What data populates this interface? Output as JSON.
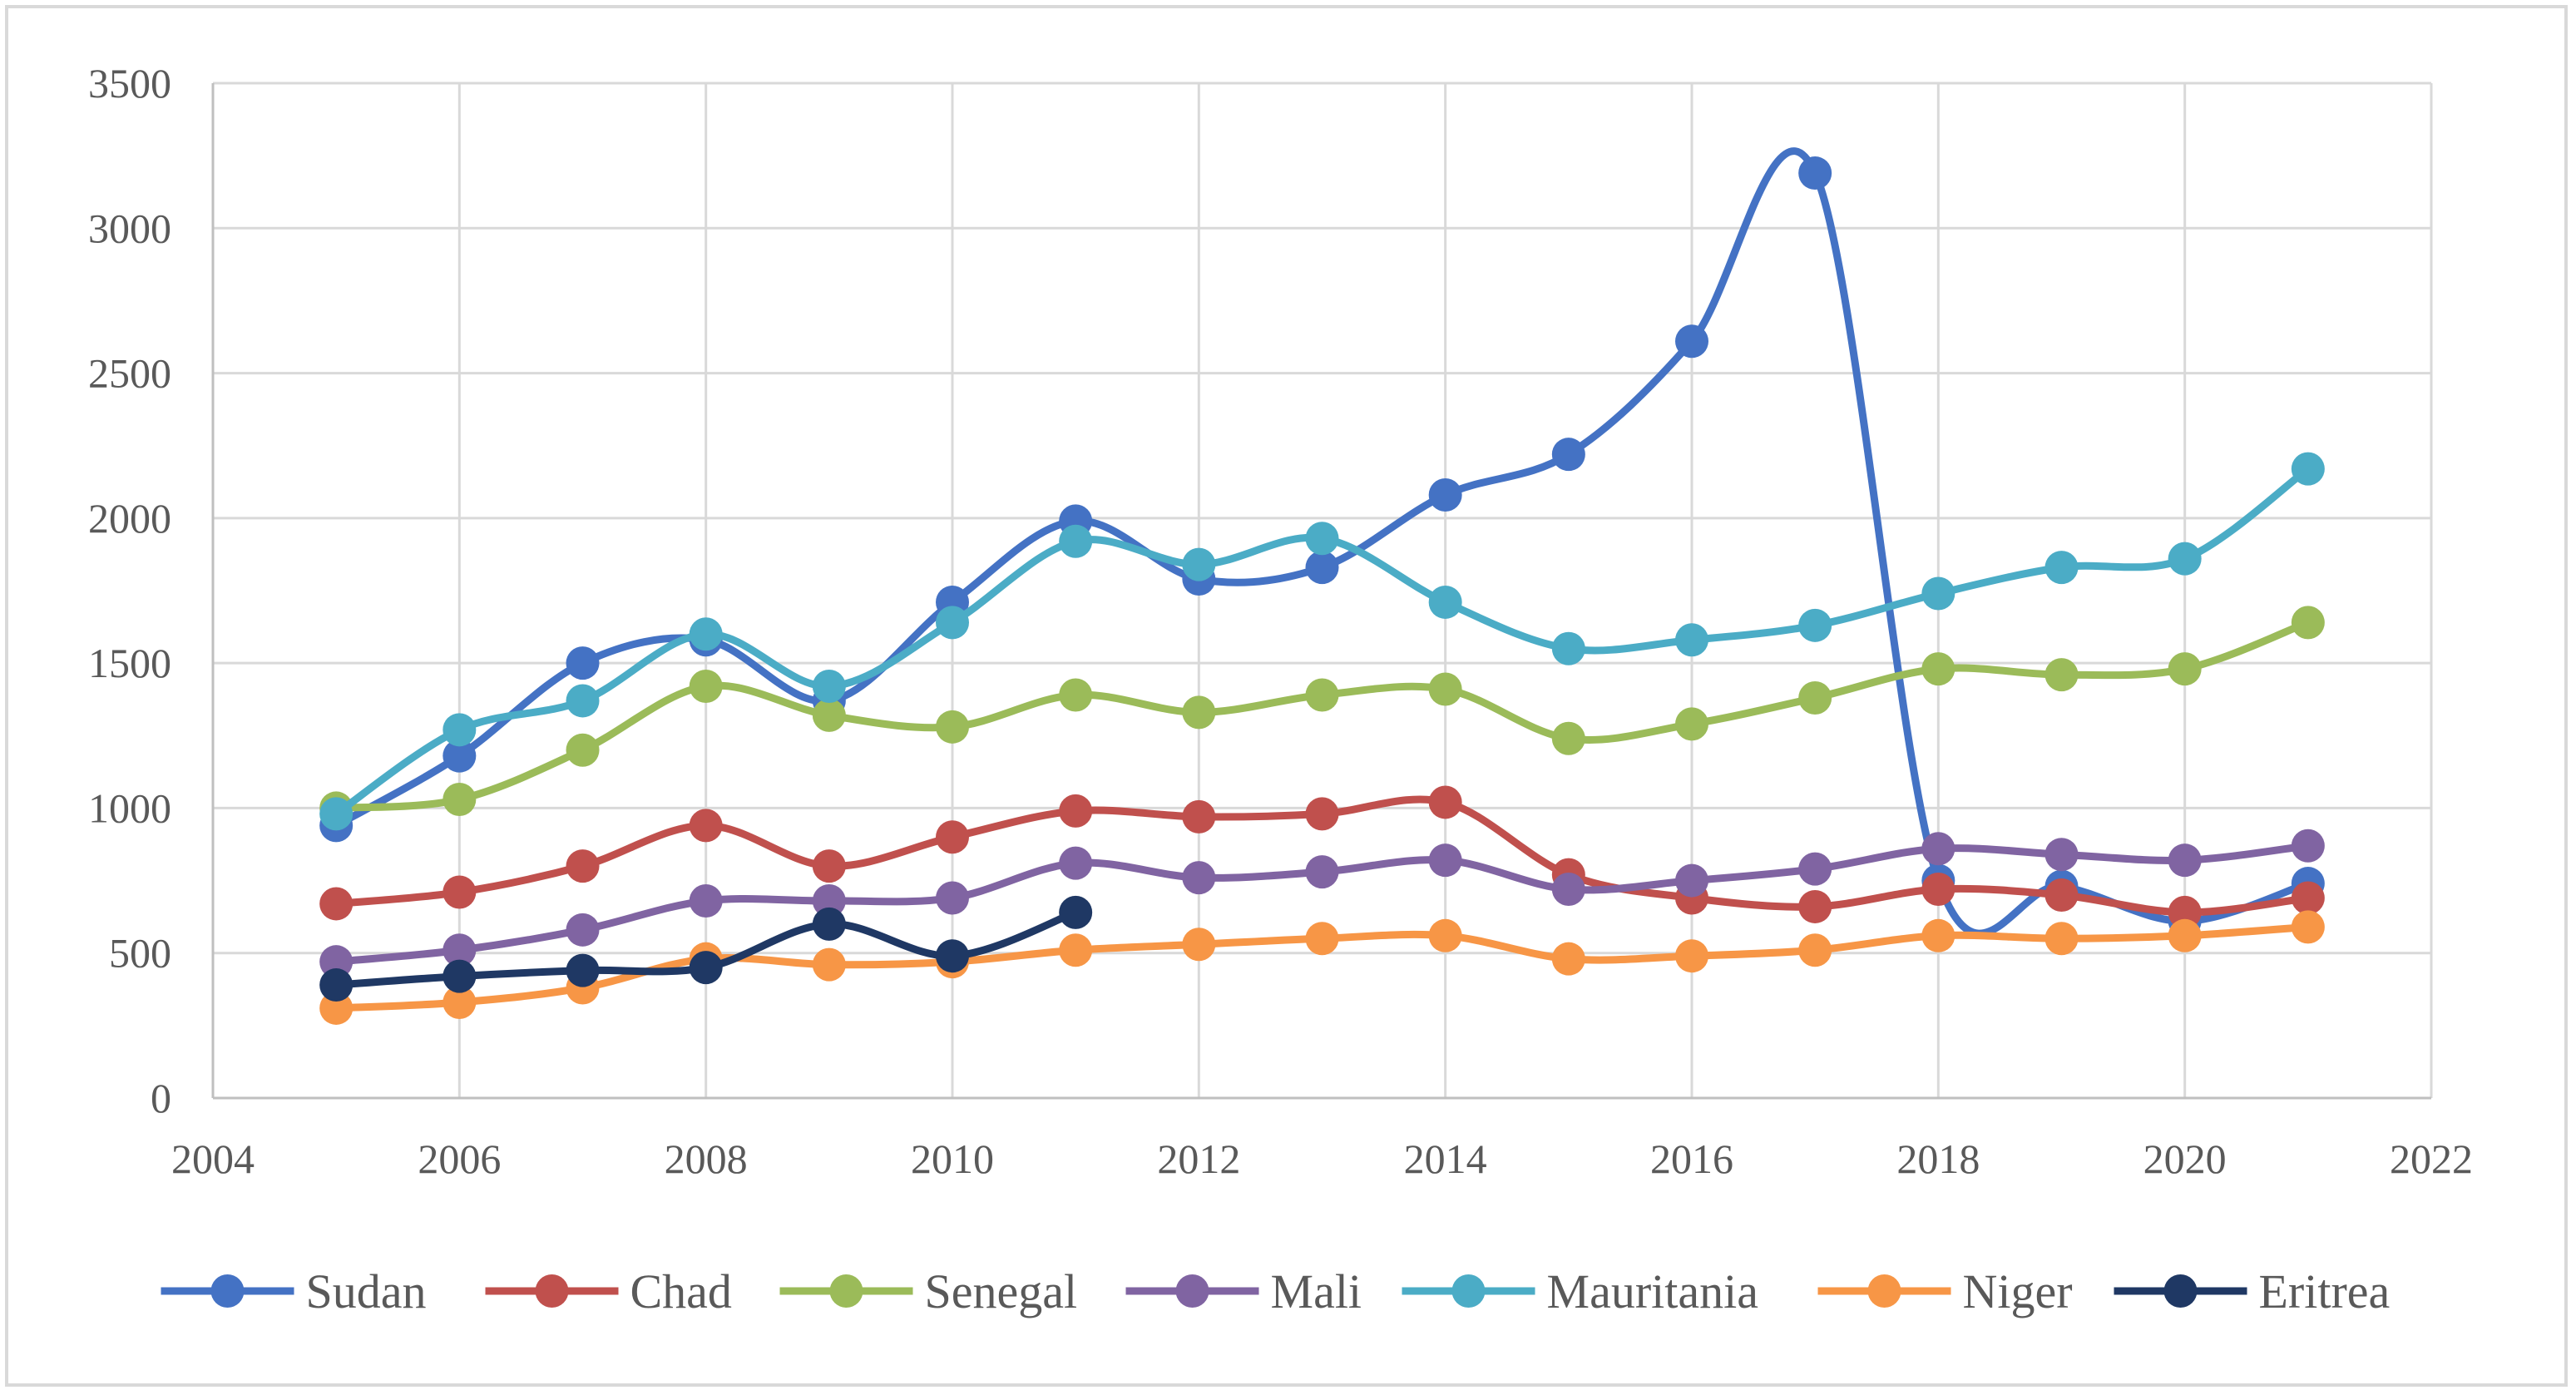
{
  "chart_data": {
    "type": "line",
    "title": "",
    "xlabel": "",
    "ylabel": "",
    "xlim": [
      2004,
      2022
    ],
    "ylim": [
      0,
      3500
    ],
    "x_ticks": [
      2004,
      2006,
      2008,
      2010,
      2012,
      2014,
      2016,
      2018,
      2020,
      2022
    ],
    "y_ticks": [
      0,
      500,
      1000,
      1500,
      2000,
      2500,
      3000,
      3500
    ],
    "grid": true,
    "legend_position": "bottom",
    "series": [
      {
        "name": "Sudan",
        "color": "#4472c4",
        "x": [
          2005,
          2006,
          2007,
          2008,
          2009,
          2010,
          2011,
          2012,
          2013,
          2014,
          2015,
          2016,
          2017,
          2018,
          2019,
          2020,
          2021
        ],
        "values": [
          940,
          1180,
          1500,
          1580,
          1370,
          1710,
          1990,
          1790,
          1830,
          2080,
          2220,
          2610,
          3190,
          750,
          730,
          610,
          740
        ]
      },
      {
        "name": "Chad",
        "color": "#c0504d",
        "x": [
          2005,
          2006,
          2007,
          2008,
          2009,
          2010,
          2011,
          2012,
          2013,
          2014,
          2015,
          2016,
          2017,
          2018,
          2019,
          2020,
          2021
        ],
        "values": [
          670,
          710,
          800,
          940,
          800,
          900,
          990,
          970,
          980,
          1020,
          770,
          690,
          660,
          720,
          700,
          640,
          690
        ]
      },
      {
        "name": "Senegal",
        "color": "#9bbb59",
        "x": [
          2005,
          2006,
          2007,
          2008,
          2009,
          2010,
          2011,
          2012,
          2013,
          2014,
          2015,
          2016,
          2017,
          2018,
          2019,
          2020,
          2021
        ],
        "values": [
          1000,
          1030,
          1200,
          1420,
          1320,
          1280,
          1390,
          1330,
          1390,
          1410,
          1240,
          1290,
          1380,
          1480,
          1460,
          1480,
          1640
        ]
      },
      {
        "name": "Mali",
        "color": "#8064a2",
        "x": [
          2005,
          2006,
          2007,
          2008,
          2009,
          2010,
          2011,
          2012,
          2013,
          2014,
          2015,
          2016,
          2017,
          2018,
          2019,
          2020,
          2021
        ],
        "values": [
          470,
          510,
          580,
          680,
          680,
          690,
          810,
          760,
          780,
          820,
          720,
          750,
          790,
          860,
          840,
          820,
          870
        ]
      },
      {
        "name": "Mauritania",
        "color": "#4bacc6",
        "x": [
          2005,
          2006,
          2007,
          2008,
          2009,
          2010,
          2011,
          2012,
          2013,
          2014,
          2015,
          2016,
          2017,
          2018,
          2019,
          2020,
          2021
        ],
        "values": [
          980,
          1270,
          1370,
          1600,
          1420,
          1640,
          1920,
          1840,
          1930,
          1710,
          1550,
          1580,
          1630,
          1740,
          1830,
          1860,
          2170
        ]
      },
      {
        "name": "Niger",
        "color": "#f79646",
        "x": [
          2005,
          2006,
          2007,
          2008,
          2009,
          2010,
          2011,
          2012,
          2013,
          2014,
          2015,
          2016,
          2017,
          2018,
          2019,
          2020,
          2021
        ],
        "values": [
          310,
          330,
          380,
          480,
          460,
          470,
          510,
          530,
          550,
          560,
          480,
          490,
          510,
          560,
          550,
          560,
          590
        ]
      },
      {
        "name": "Eritrea",
        "color": "#1f3864",
        "x": [
          2005,
          2006,
          2007,
          2008,
          2009,
          2010,
          2011
        ],
        "values": [
          390,
          420,
          440,
          450,
          600,
          490,
          640
        ]
      }
    ]
  }
}
